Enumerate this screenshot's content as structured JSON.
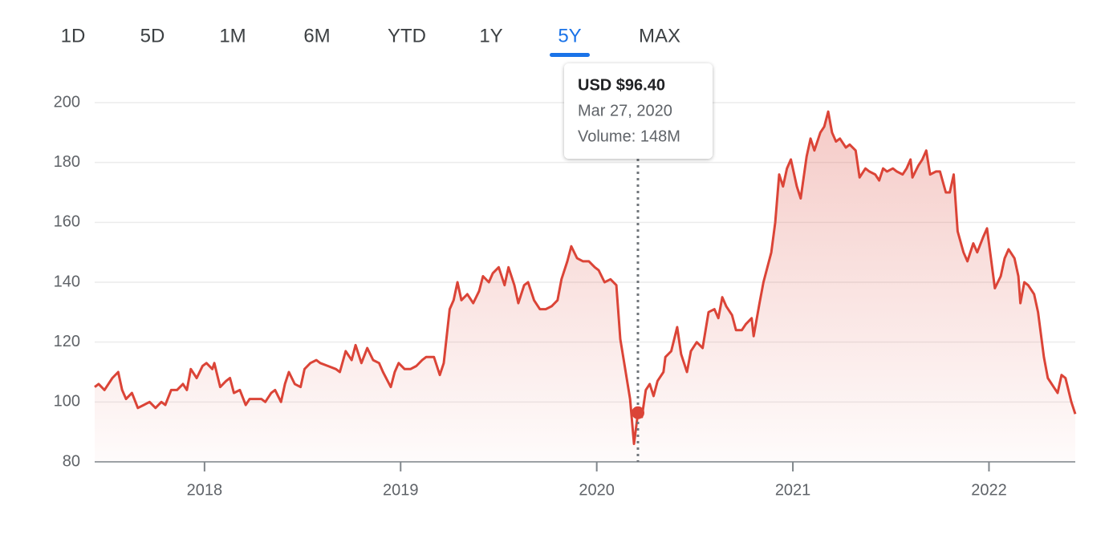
{
  "range_tabs": [
    "1D",
    "5D",
    "1M",
    "6M",
    "YTD",
    "1Y",
    "5Y",
    "MAX"
  ],
  "selected_range": "5Y",
  "chart_data": {
    "type": "area",
    "color": "#db4437",
    "grid": true,
    "xlim": [
      2017.44,
      2022.44
    ],
    "xticks": [
      2018,
      2019,
      2020,
      2021,
      2022
    ],
    "ylim": [
      80,
      200
    ],
    "yticks": [
      80,
      100,
      120,
      140,
      160,
      180,
      200
    ],
    "x": [
      2017.44,
      2017.46,
      2017.49,
      2017.53,
      2017.56,
      2017.58,
      2017.6,
      2017.63,
      2017.66,
      2017.69,
      2017.72,
      2017.75,
      2017.78,
      2017.8,
      2017.83,
      2017.86,
      2017.89,
      2017.91,
      2017.93,
      2017.96,
      2017.99,
      2018.01,
      2018.04,
      2018.05,
      2018.08,
      2018.11,
      2018.13,
      2018.15,
      2018.18,
      2018.21,
      2018.23,
      2018.26,
      2018.29,
      2018.31,
      2018.34,
      2018.36,
      2018.39,
      2018.41,
      2018.43,
      2018.46,
      2018.49,
      2018.51,
      2018.54,
      2018.57,
      2018.59,
      2018.63,
      2018.67,
      2018.69,
      2018.72,
      2018.75,
      2018.77,
      2018.8,
      2018.83,
      2018.86,
      2018.89,
      2018.91,
      2018.95,
      2018.97,
      2018.99,
      2019.02,
      2019.05,
      2019.08,
      2019.11,
      2019.13,
      2019.17,
      2019.2,
      2019.22,
      2019.25,
      2019.27,
      2019.29,
      2019.31,
      2019.34,
      2019.37,
      2019.4,
      2019.42,
      2019.45,
      2019.47,
      2019.5,
      2019.53,
      2019.55,
      2019.58,
      2019.6,
      2019.63,
      2019.65,
      2019.68,
      2019.71,
      2019.74,
      2019.77,
      2019.8,
      2019.82,
      2019.85,
      2019.87,
      2019.9,
      2019.93,
      2019.96,
      2019.99,
      2020.01,
      2020.04,
      2020.07,
      2020.1,
      2020.12,
      2020.14,
      2020.17,
      2020.19,
      2020.21,
      2020.23,
      2020.25,
      2020.27,
      2020.29,
      2020.31,
      2020.34,
      2020.35,
      2020.38,
      2020.41,
      2020.43,
      2020.46,
      2020.48,
      2020.51,
      2020.54,
      2020.57,
      2020.6,
      2020.62,
      2020.64,
      2020.66,
      2020.69,
      2020.71,
      2020.74,
      2020.76,
      2020.79,
      2020.8,
      2020.83,
      2020.85,
      2020.89,
      2020.91,
      2020.93,
      2020.95,
      2020.97,
      2020.99,
      2021.02,
      2021.04,
      2021.07,
      2021.09,
      2021.11,
      2021.14,
      2021.16,
      2021.18,
      2021.2,
      2021.22,
      2021.24,
      2021.27,
      2021.29,
      2021.32,
      2021.34,
      2021.37,
      2021.39,
      2021.42,
      2021.44,
      2021.46,
      2021.48,
      2021.51,
      2021.53,
      2021.56,
      2021.58,
      2021.6,
      2021.61,
      2021.64,
      2021.66,
      2021.68,
      2021.7,
      2021.73,
      2021.75,
      2021.78,
      2021.8,
      2021.82,
      2021.84,
      2021.87,
      2021.89,
      2021.92,
      2021.94,
      2021.97,
      2021.99,
      2022.01,
      2022.03,
      2022.06,
      2022.08,
      2022.1,
      2022.13,
      2022.15,
      2022.16,
      2022.18,
      2022.2,
      2022.23,
      2022.25,
      2022.28,
      2022.3,
      2022.33,
      2022.35,
      2022.37,
      2022.39,
      2022.42,
      2022.44
    ],
    "values": [
      105,
      106,
      104,
      108,
      110,
      104,
      101,
      103,
      98,
      99,
      100,
      98,
      100,
      99,
      104,
      104,
      106,
      104,
      111,
      108,
      112,
      113,
      111,
      113,
      105,
      107,
      108,
      103,
      104,
      99,
      101,
      101,
      101,
      100,
      103,
      104,
      100,
      106,
      110,
      106,
      105,
      111,
      113,
      114,
      113,
      112,
      111,
      110,
      117,
      114,
      119,
      113,
      118,
      114,
      113,
      110,
      105,
      110,
      113,
      111,
      111,
      112,
      114,
      115,
      115,
      109,
      113,
      131,
      134,
      140,
      134,
      136,
      133,
      137,
      142,
      140,
      143,
      145,
      139,
      145,
      139,
      133,
      139,
      140,
      134,
      131,
      131,
      132,
      134,
      141,
      147,
      152,
      148,
      147,
      147,
      145,
      144,
      140,
      141,
      139,
      121,
      113,
      101,
      86,
      96.4,
      95,
      104,
      106,
      102,
      107,
      110,
      115,
      117,
      125,
      116,
      110,
      117,
      120,
      118,
      130,
      131,
      128,
      135,
      132,
      129,
      124,
      124,
      126,
      128,
      122,
      133,
      140,
      150,
      160,
      176,
      172,
      178,
      181,
      172,
      168,
      182,
      188,
      184,
      190,
      192,
      197,
      190,
      187,
      188,
      185,
      186,
      184,
      175,
      178,
      177,
      176,
      174,
      178,
      177,
      178,
      177,
      176,
      178,
      181,
      175,
      179,
      181,
      184,
      176,
      177,
      177,
      170,
      170,
      176,
      157,
      150,
      147,
      153,
      150,
      155,
      158,
      148,
      138,
      142,
      148,
      151,
      148,
      142,
      133,
      140,
      139,
      136,
      130,
      115,
      108,
      105,
      103,
      109,
      108,
      100,
      96
    ],
    "tooltip": {
      "x": 2020.21,
      "value": 96.4,
      "value_label": "USD $96.40",
      "date": "Mar 27, 2020",
      "volume": "Volume: 148M"
    }
  }
}
